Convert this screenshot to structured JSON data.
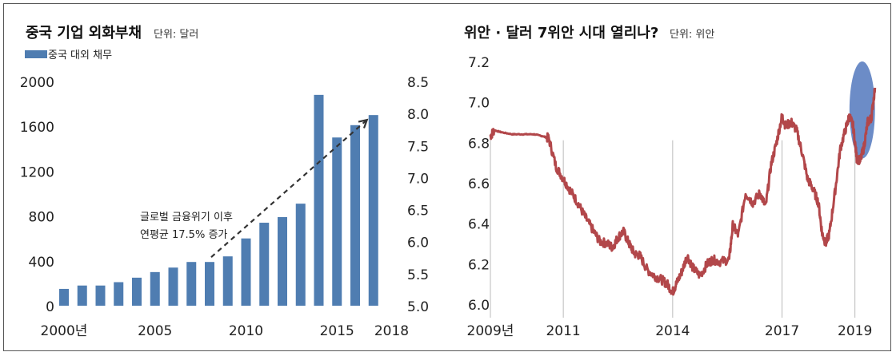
{
  "chart_data": [
    {
      "type": "bar",
      "title": "중국 기업 외화부채",
      "unit_label": "단위: 달러",
      "legend": [
        {
          "name": "중국 대외 채무",
          "color": "#4f7db1"
        }
      ],
      "categories": [
        "2000",
        "2001",
        "2002",
        "2003",
        "2004",
        "2005",
        "2006",
        "2007",
        "2008",
        "2009",
        "2010",
        "2011",
        "2012",
        "2013",
        "2014",
        "2015",
        "2016",
        "2017"
      ],
      "values": [
        150,
        180,
        180,
        210,
        250,
        300,
        340,
        390,
        390,
        440,
        600,
        740,
        790,
        910,
        1880,
        1500,
        1610,
        1700
      ],
      "x_tick_labels": [
        {
          "year": 2000,
          "label": "2000년"
        },
        {
          "year": 2005,
          "label": "2005"
        },
        {
          "year": 2010,
          "label": "2010"
        },
        {
          "year": 2015,
          "label": "2015"
        },
        {
          "year": 2018,
          "label": "2018"
        }
      ],
      "ylim": [
        0,
        2000
      ],
      "y_ticks": [
        0,
        400,
        800,
        1200,
        1600,
        2000
      ],
      "y2_ticks": [
        "5.0",
        "5.5",
        "6.0",
        "6.5",
        "7.0",
        "7.5",
        "8.0",
        "8.5"
      ],
      "annotation": {
        "lines": [
          "글로벌 금융위기 이후",
          "연평균 17.5% 증가"
        ]
      },
      "colors": {
        "bar": "#4f7db1",
        "arrow": "#333333"
      }
    },
    {
      "type": "line",
      "title": "위안 · 달러 7위안 시대 열리나?",
      "unit_label": "단위: 위안",
      "ylim": [
        6.0,
        7.2
      ],
      "y_ticks": [
        "6.0",
        "6.2",
        "6.4",
        "6.6",
        "6.8",
        "7.0",
        "7.2"
      ],
      "x_range": [
        2009.0,
        2019.6
      ],
      "x_tick_labels": [
        {
          "x": 2009.0,
          "label": "2009년"
        },
        {
          "x": 2011.0,
          "label": "2011"
        },
        {
          "x": 2014.0,
          "label": "2014"
        },
        {
          "x": 2017.0,
          "label": "2017"
        },
        {
          "x": 2019.0,
          "label": "2019"
        }
      ],
      "series": [
        {
          "color": "#b2474a",
          "points": [
            [
              2009.0,
              6.83
            ],
            [
              2009.1,
              6.86
            ],
            [
              2009.3,
              6.85
            ],
            [
              2009.6,
              6.84
            ],
            [
              2009.9,
              6.84
            ],
            [
              2010.2,
              6.84
            ],
            [
              2010.45,
              6.83
            ],
            [
              2010.6,
              6.82
            ],
            [
              2010.8,
              6.68
            ],
            [
              2011.0,
              6.62
            ],
            [
              2011.2,
              6.56
            ],
            [
              2011.4,
              6.5
            ],
            [
              2011.6,
              6.43
            ],
            [
              2011.8,
              6.37
            ],
            [
              2012.0,
              6.31
            ],
            [
              2012.2,
              6.3
            ],
            [
              2012.35,
              6.28
            ],
            [
              2012.5,
              6.33
            ],
            [
              2012.65,
              6.36
            ],
            [
              2012.8,
              6.3
            ],
            [
              2012.95,
              6.25
            ],
            [
              2013.1,
              6.24
            ],
            [
              2013.3,
              6.17
            ],
            [
              2013.5,
              6.14
            ],
            [
              2013.7,
              6.12
            ],
            [
              2013.85,
              6.1
            ],
            [
              2014.0,
              6.06
            ],
            [
              2014.1,
              6.1
            ],
            [
              2014.25,
              6.16
            ],
            [
              2014.4,
              6.24
            ],
            [
              2014.55,
              6.18
            ],
            [
              2014.75,
              6.14
            ],
            [
              2014.95,
              6.2
            ],
            [
              2015.1,
              6.22
            ],
            [
              2015.3,
              6.21
            ],
            [
              2015.55,
              6.22
            ],
            [
              2015.65,
              6.39
            ],
            [
              2015.8,
              6.34
            ],
            [
              2016.0,
              6.55
            ],
            [
              2016.2,
              6.5
            ],
            [
              2016.4,
              6.55
            ],
            [
              2016.55,
              6.48
            ],
            [
              2016.7,
              6.69
            ],
            [
              2016.85,
              6.8
            ],
            [
              2017.0,
              6.93
            ],
            [
              2017.1,
              6.88
            ],
            [
              2017.25,
              6.9
            ],
            [
              2017.4,
              6.86
            ],
            [
              2017.55,
              6.75
            ],
            [
              2017.7,
              6.62
            ],
            [
              2017.85,
              6.57
            ],
            [
              2018.0,
              6.5
            ],
            [
              2018.1,
              6.35
            ],
            [
              2018.2,
              6.3
            ],
            [
              2018.3,
              6.35
            ],
            [
              2018.45,
              6.55
            ],
            [
              2018.6,
              6.77
            ],
            [
              2018.75,
              6.87
            ],
            [
              2018.85,
              6.93
            ],
            [
              2018.95,
              6.88
            ],
            [
              2019.05,
              6.72
            ],
            [
              2019.15,
              6.71
            ],
            [
              2019.25,
              6.78
            ],
            [
              2019.35,
              6.9
            ],
            [
              2019.45,
              6.92
            ],
            [
              2019.55,
              7.07
            ]
          ]
        }
      ],
      "highlight_ellipse": {
        "center": [
          2019.2,
          6.96
        ],
        "rx_years": 0.35,
        "ry_value": 0.24
      },
      "colors": {
        "line": "#b2474a",
        "highlight": "#5c7fc1",
        "gridline": "#bbbbbb"
      }
    }
  ]
}
